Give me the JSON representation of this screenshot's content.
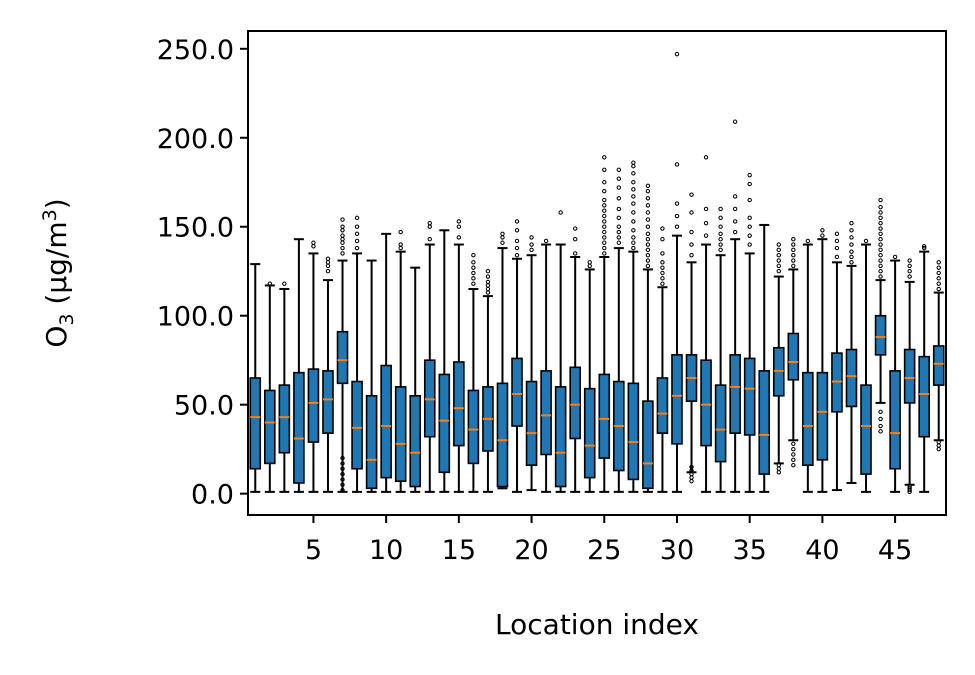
{
  "chart_data": {
    "type": "box",
    "xlabel": "Location index",
    "ylabel_main": "O",
    "ylabel_sub": "3",
    "ylabel_unit_open": " (μg/m",
    "ylabel_unit_sup": "3",
    "ylabel_unit_close": ")",
    "xlim": [
      0.5,
      48.5
    ],
    "ylim": [
      -12,
      260
    ],
    "x_ticks": [
      5,
      10,
      15,
      20,
      25,
      30,
      35,
      40,
      45
    ],
    "y_ticks": [
      0,
      50,
      100,
      150,
      200,
      250
    ],
    "y_tick_labels": [
      "0.0",
      "50.0",
      "100.0",
      "150.0",
      "200.0",
      "250.0"
    ],
    "box_color": "#1f77b4",
    "median_color": "#ff7f0e",
    "boxes": [
      {
        "x": 1,
        "whislo": 1,
        "q1": 14,
        "med": 43,
        "q3": 65,
        "whishi": 129,
        "fliers": []
      },
      {
        "x": 2,
        "whislo": 1,
        "q1": 17,
        "med": 40,
        "q3": 58,
        "whishi": 117,
        "fliers": [
          118
        ]
      },
      {
        "x": 3,
        "whislo": 1,
        "q1": 23,
        "med": 43,
        "q3": 61,
        "whishi": 115,
        "fliers": [
          118
        ]
      },
      {
        "x": 4,
        "whislo": 1,
        "q1": 6,
        "med": 31,
        "q3": 68,
        "whishi": 143,
        "fliers": []
      },
      {
        "x": 5,
        "whislo": 1,
        "q1": 29,
        "med": 51,
        "q3": 70,
        "whishi": 135,
        "fliers": [
          139,
          141
        ]
      },
      {
        "x": 6,
        "whislo": 1,
        "q1": 34,
        "med": 53,
        "q3": 69,
        "whishi": 120,
        "fliers": [
          125,
          128,
          130,
          132
        ]
      },
      {
        "x": 7,
        "whislo": 1,
        "q1": 62,
        "med": 75,
        "q3": 91,
        "whishi": 131,
        "fliers": [
          2,
          5,
          8,
          11,
          14,
          17,
          20,
          135,
          138,
          141,
          143,
          145,
          148,
          150,
          154
        ]
      },
      {
        "x": 8,
        "whislo": 1,
        "q1": 14,
        "med": 37,
        "q3": 63,
        "whishi": 135,
        "fliers": [
          138,
          142,
          146,
          150,
          155
        ]
      },
      {
        "x": 9,
        "whislo": 1,
        "q1": 3,
        "med": 19,
        "q3": 55,
        "whishi": 131,
        "fliers": []
      },
      {
        "x": 10,
        "whislo": 1,
        "q1": 9,
        "med": 38,
        "q3": 72,
        "whishi": 146,
        "fliers": []
      },
      {
        "x": 11,
        "whislo": 1,
        "q1": 7,
        "med": 28,
        "q3": 60,
        "whishi": 136,
        "fliers": [
          138,
          140,
          147
        ]
      },
      {
        "x": 12,
        "whislo": 1,
        "q1": 4,
        "med": 23,
        "q3": 55,
        "whishi": 127,
        "fliers": []
      },
      {
        "x": 13,
        "whislo": 1,
        "q1": 32,
        "med": 53,
        "q3": 75,
        "whishi": 140,
        "fliers": [
          143,
          150,
          152
        ]
      },
      {
        "x": 14,
        "whislo": 1,
        "q1": 12,
        "med": 41,
        "q3": 67,
        "whishi": 148,
        "fliers": []
      },
      {
        "x": 15,
        "whislo": 1,
        "q1": 27,
        "med": 48,
        "q3": 74,
        "whishi": 140,
        "fliers": [
          144,
          150,
          153
        ]
      },
      {
        "x": 16,
        "whislo": 1,
        "q1": 17,
        "med": 36,
        "q3": 58,
        "whishi": 115,
        "fliers": [
          118,
          121,
          124,
          127,
          130,
          134
        ]
      },
      {
        "x": 17,
        "whislo": 1,
        "q1": 24,
        "med": 42,
        "q3": 60,
        "whishi": 111,
        "fliers": [
          113,
          115,
          117,
          119,
          122,
          125
        ]
      },
      {
        "x": 18,
        "whislo": 3,
        "q1": 4,
        "med": 30,
        "q3": 62,
        "whishi": 138,
        "fliers": [
          141,
          144,
          146
        ]
      },
      {
        "x": 19,
        "whislo": 1,
        "q1": 38,
        "med": 56,
        "q3": 76,
        "whishi": 132,
        "fliers": [
          134,
          138,
          142,
          148,
          153
        ]
      },
      {
        "x": 20,
        "whislo": 2,
        "q1": 16,
        "med": 34,
        "q3": 63,
        "whishi": 134,
        "fliers": [
          137,
          140,
          144
        ]
      },
      {
        "x": 21,
        "whislo": 1,
        "q1": 22,
        "med": 44,
        "q3": 69,
        "whishi": 140,
        "fliers": [
          142
        ]
      },
      {
        "x": 22,
        "whislo": 1,
        "q1": 4,
        "med": 23,
        "q3": 60,
        "whishi": 140,
        "fliers": [
          158
        ]
      },
      {
        "x": 23,
        "whislo": 1,
        "q1": 31,
        "med": 50,
        "q3": 71,
        "whishi": 133,
        "fliers": [
          135,
          143,
          149
        ]
      },
      {
        "x": 24,
        "whislo": 1,
        "q1": 9,
        "med": 27,
        "q3": 59,
        "whishi": 126,
        "fliers": [
          128,
          130
        ]
      },
      {
        "x": 25,
        "whislo": 1,
        "q1": 20,
        "med": 42,
        "q3": 67,
        "whishi": 133,
        "fliers": [
          135,
          138,
          141,
          144,
          147,
          150,
          153,
          156,
          159,
          162,
          165,
          170,
          175,
          182,
          189
        ]
      },
      {
        "x": 26,
        "whislo": 1,
        "q1": 13,
        "med": 38,
        "q3": 63,
        "whishi": 138,
        "fliers": [
          141,
          144,
          147,
          150,
          155,
          160,
          166,
          172,
          177,
          182
        ]
      },
      {
        "x": 27,
        "whislo": 1,
        "q1": 8,
        "med": 29,
        "q3": 62,
        "whishi": 136,
        "fliers": [
          138,
          141,
          144,
          148,
          153,
          158,
          163,
          167,
          171,
          175,
          180,
          184,
          186
        ]
      },
      {
        "x": 28,
        "whislo": 1,
        "q1": 3,
        "med": 17,
        "q3": 52,
        "whishi": 126,
        "fliers": [
          128,
          131,
          134,
          137,
          140,
          143,
          146,
          150,
          154,
          158,
          162,
          166,
          170,
          173
        ]
      },
      {
        "x": 29,
        "whislo": 1,
        "q1": 34,
        "med": 45,
        "q3": 65,
        "whishi": 116,
        "fliers": [
          118,
          121,
          124,
          127,
          130,
          135,
          143,
          149
        ]
      },
      {
        "x": 30,
        "whislo": 1,
        "q1": 28,
        "med": 55,
        "q3": 78,
        "whishi": 145,
        "fliers": [
          150,
          156,
          163,
          185,
          247
        ]
      },
      {
        "x": 31,
        "whislo": 12,
        "q1": 52,
        "med": 65,
        "q3": 78,
        "whishi": 130,
        "fliers": [
          7,
          9,
          11,
          13,
          15,
          134,
          140,
          147,
          158,
          168
        ]
      },
      {
        "x": 32,
        "whislo": 1,
        "q1": 27,
        "med": 50,
        "q3": 75,
        "whishi": 140,
        "fliers": [
          145,
          152,
          160,
          189
        ]
      },
      {
        "x": 33,
        "whislo": 1,
        "q1": 18,
        "med": 36,
        "q3": 61,
        "whishi": 134,
        "fliers": [
          137,
          140,
          143,
          146,
          150,
          155,
          160
        ]
      },
      {
        "x": 34,
        "whislo": 1,
        "q1": 34,
        "med": 60,
        "q3": 78,
        "whishi": 143,
        "fliers": [
          147,
          153,
          160,
          167,
          209
        ]
      },
      {
        "x": 35,
        "whislo": 1,
        "q1": 33,
        "med": 59,
        "q3": 76,
        "whishi": 135,
        "fliers": [
          140,
          145,
          150,
          155,
          165,
          174,
          179
        ]
      },
      {
        "x": 36,
        "whislo": 1,
        "q1": 11,
        "med": 33,
        "q3": 69,
        "whishi": 151,
        "fliers": []
      },
      {
        "x": 37,
        "whislo": 17,
        "q1": 55,
        "med": 69,
        "q3": 82,
        "whishi": 122,
        "fliers": [
          12,
          14,
          16,
          125,
          128,
          131,
          134,
          137,
          140
        ]
      },
      {
        "x": 38,
        "whislo": 30,
        "q1": 64,
        "med": 74,
        "q3": 90,
        "whishi": 126,
        "fliers": [
          16,
          19,
          22,
          25,
          28,
          128,
          131,
          134,
          137,
          140,
          143
        ]
      },
      {
        "x": 39,
        "whislo": 1,
        "q1": 16,
        "med": 38,
        "q3": 68,
        "whishi": 140,
        "fliers": [
          142
        ]
      },
      {
        "x": 40,
        "whislo": 1,
        "q1": 19,
        "med": 46,
        "q3": 68,
        "whishi": 143,
        "fliers": [
          145,
          148
        ]
      },
      {
        "x": 41,
        "whislo": 2,
        "q1": 46,
        "med": 63,
        "q3": 79,
        "whishi": 130,
        "fliers": [
          133,
          138,
          142,
          146
        ]
      },
      {
        "x": 42,
        "whislo": 6,
        "q1": 49,
        "med": 66,
        "q3": 81,
        "whishi": 128,
        "fliers": [
          130,
          133,
          136,
          140,
          144,
          148,
          152
        ]
      },
      {
        "x": 43,
        "whislo": 1,
        "q1": 11,
        "med": 38,
        "q3": 61,
        "whishi": 140,
        "fliers": [
          142
        ]
      },
      {
        "x": 44,
        "whislo": 51,
        "q1": 78,
        "med": 88,
        "q3": 100,
        "whishi": 120,
        "fliers": [
          35,
          38,
          42,
          46,
          122,
          125,
          128,
          131,
          134,
          137,
          140,
          143,
          146,
          149,
          152,
          155,
          158,
          161,
          165
        ]
      },
      {
        "x": 45,
        "whislo": 1,
        "q1": 14,
        "med": 34,
        "q3": 69,
        "whishi": 131,
        "fliers": [
          133
        ]
      },
      {
        "x": 46,
        "whislo": 5,
        "q1": 51,
        "med": 65,
        "q3": 81,
        "whishi": 119,
        "fliers": [
          1,
          2,
          3,
          4,
          122,
          125,
          128,
          131
        ]
      },
      {
        "x": 47,
        "whislo": 1,
        "q1": 32,
        "med": 56,
        "q3": 77,
        "whishi": 136,
        "fliers": [
          138,
          139
        ]
      },
      {
        "x": 48,
        "whislo": 30,
        "q1": 61,
        "med": 73,
        "q3": 83,
        "whishi": 113,
        "fliers": [
          25,
          27,
          29,
          115,
          118,
          121,
          124,
          127,
          130
        ]
      }
    ]
  }
}
